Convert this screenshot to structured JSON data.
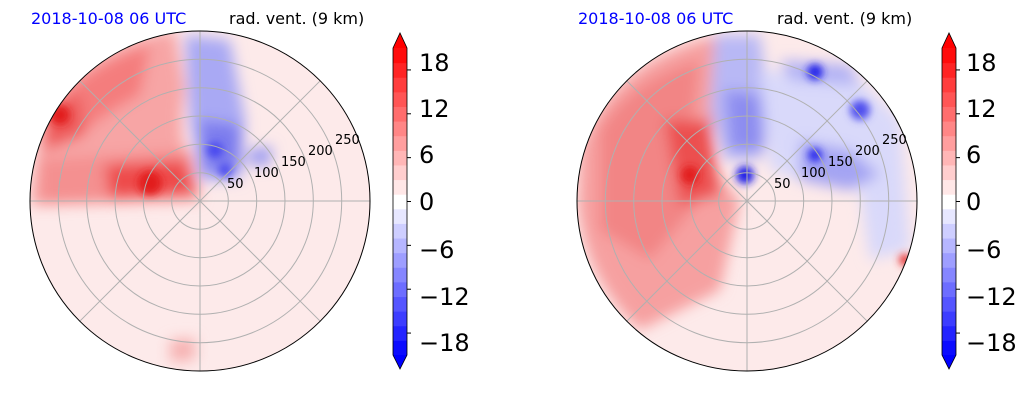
{
  "chart_data": [
    {
      "type": "heatmap",
      "projection": "polar",
      "date_label": "2018-10-08 06 UTC",
      "title": "rad. vent. (9 km)",
      "radial_ticks": [
        "50",
        "100",
        "150",
        "200",
        "250"
      ],
      "radial_values": [
        50,
        100,
        150,
        200,
        250
      ],
      "rmax": 300,
      "angular_grid_step_deg": 45,
      "colorbar": {
        "ticks": [
          "18",
          "12",
          "6",
          "0",
          "−6",
          "−12",
          "−18"
        ],
        "tick_values": [
          18,
          12,
          6,
          0,
          -6,
          -12,
          -18
        ],
        "range": [
          -21,
          21
        ],
        "colormap": "bwr",
        "extend": "both"
      },
      "features": [
        {
          "sign": "positive",
          "value": 14,
          "description": "northwest and west"
        },
        {
          "sign": "negative",
          "value": -12,
          "description": "north to northeast"
        }
      ]
    },
    {
      "type": "heatmap",
      "projection": "polar",
      "date_label": "2018-10-08 06 UTC",
      "title": "rad. vent. (9 km)",
      "radial_ticks": [
        "50",
        "100",
        "150",
        "200",
        "250"
      ],
      "radial_values": [
        50,
        100,
        150,
        200,
        250
      ],
      "rmax": 300,
      "angular_grid_step_deg": 45,
      "colorbar": {
        "ticks": [
          "18",
          "12",
          "6",
          "0",
          "−6",
          "−12",
          "−18"
        ],
        "tick_values": [
          18,
          12,
          6,
          0,
          -6,
          -12,
          -18
        ],
        "range": [
          -21,
          21
        ],
        "colormap": "bwr",
        "extend": "both"
      },
      "features": [
        {
          "sign": "positive",
          "value": 14,
          "description": "west half"
        },
        {
          "sign": "negative",
          "value": -14,
          "description": "north and east bands"
        }
      ]
    }
  ],
  "colors": {
    "date_label": "#0000ff",
    "positive": "#ff0000",
    "negative": "#0000ff",
    "zero": "#ffffff",
    "grid": "#b0b0b0"
  }
}
